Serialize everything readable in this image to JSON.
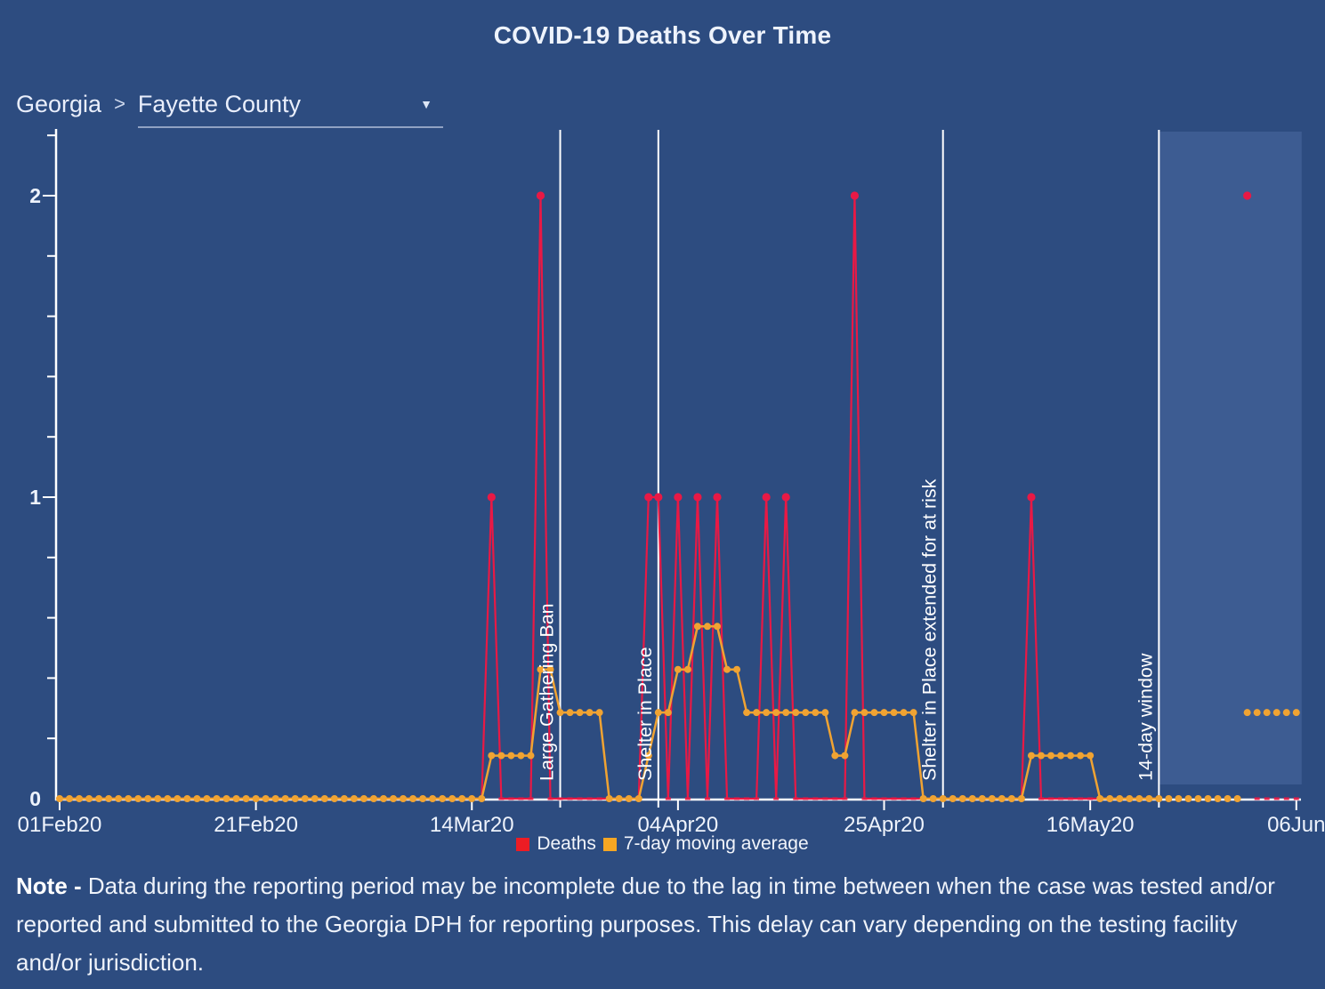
{
  "page": {
    "background_color": "#2d4c80"
  },
  "header": {
    "title": "COVID-19 Deaths Over Time"
  },
  "breadcrumb": {
    "state": "Georgia",
    "separator": ">",
    "county": "Fayette County",
    "dropdown_icon": "▼"
  },
  "legend": [
    {
      "label": "Deaths",
      "color": "#ed1c24"
    },
    {
      "label": "7-day moving average",
      "color": "#f5a623"
    }
  ],
  "note": {
    "prefix": "Note -",
    "body": " Data during the reporting period may be incomplete due to the lag in time between when the case was tested and/or reported and submitted to the Georgia DPH for reporting purposes. This delay can vary depending on the testing facility and/or jurisdiction."
  },
  "chart_data": {
    "type": "line",
    "title": "COVID-19 Deaths Over Time",
    "grid": false,
    "legend_position": "bottom-center",
    "x_axis": {
      "start_date": "2020-02-01",
      "end_date": "2020-06-06",
      "n_days": 127,
      "tick_labels": [
        "01Feb20",
        "21Feb20",
        "14Mar20",
        "04Apr20",
        "25Apr20",
        "16May20",
        "06Jun"
      ],
      "tick_days": [
        0,
        20,
        42,
        63,
        84,
        105,
        126
      ]
    },
    "y_axis": {
      "ticks": [
        0,
        1,
        2
      ],
      "tick_labels": [
        "0",
        "1",
        "2"
      ],
      "minor_step": 0.2,
      "ylim": [
        0,
        2.2
      ]
    },
    "series": [
      {
        "name": "Deaths",
        "color": "#e81945",
        "style": "spike-line-with-markers",
        "baseline_value": 0,
        "events": [
          {
            "date": "2020-03-16",
            "day": 44,
            "value": 1
          },
          {
            "date": "2020-03-21",
            "day": 49,
            "value": 2
          },
          {
            "date": "2020-04-01",
            "day": 60,
            "value": 1
          },
          {
            "date": "2020-04-02",
            "day": 61,
            "value": 1
          },
          {
            "date": "2020-04-04",
            "day": 63,
            "value": 1
          },
          {
            "date": "2020-04-06",
            "day": 65,
            "value": 1
          },
          {
            "date": "2020-04-08",
            "day": 67,
            "value": 1
          },
          {
            "date": "2020-04-13",
            "day": 72,
            "value": 1
          },
          {
            "date": "2020-04-15",
            "day": 74,
            "value": 1
          },
          {
            "date": "2020-04-22",
            "day": 81,
            "value": 2
          },
          {
            "date": "2020-05-10",
            "day": 99,
            "value": 1
          },
          {
            "date": "2020-06-01",
            "day": 121,
            "value": 2
          }
        ]
      },
      {
        "name": "7-day moving average",
        "color": "#f0a332",
        "style": "line-with-dots",
        "values_denominator": 7,
        "values_sevenths": [
          0,
          0,
          0,
          0,
          0,
          0,
          0,
          0,
          0,
          0,
          0,
          0,
          0,
          0,
          0,
          0,
          0,
          0,
          0,
          0,
          0,
          0,
          0,
          0,
          0,
          0,
          0,
          0,
          0,
          0,
          0,
          0,
          0,
          0,
          0,
          0,
          0,
          0,
          0,
          0,
          0,
          0,
          0,
          0,
          1,
          1,
          1,
          1,
          1,
          3,
          3,
          2,
          2,
          2,
          2,
          2,
          0,
          0,
          0,
          0,
          1,
          2,
          2,
          3,
          3,
          4,
          4,
          4,
          3,
          3,
          2,
          2,
          2,
          2,
          2,
          2,
          2,
          2,
          2,
          1,
          1,
          2,
          2,
          2,
          2,
          2,
          2,
          2,
          0,
          0,
          0,
          0,
          0,
          0,
          0,
          0,
          0,
          0,
          0,
          1,
          1,
          1,
          1,
          1,
          1,
          1,
          0,
          0,
          0,
          0,
          0,
          0,
          0,
          0,
          0,
          0,
          0,
          0,
          0,
          0,
          0,
          2,
          2,
          2,
          2,
          2,
          2
        ]
      }
    ],
    "annotations": [
      {
        "label": "Large Gathering Ban",
        "date": "2020-03-23",
        "day": 51
      },
      {
        "label": "Shelter in Place",
        "date": "2020-04-02",
        "day": 61
      },
      {
        "label": "Shelter in Place extended for at risk",
        "date": "2020-04-30",
        "day": 90
      },
      {
        "label": "14-day window",
        "date": "2020-05-23",
        "day": 112
      }
    ],
    "reporting_window": {
      "start_day": 112,
      "end_day": 126,
      "shade_color": "#3d5c92"
    }
  }
}
